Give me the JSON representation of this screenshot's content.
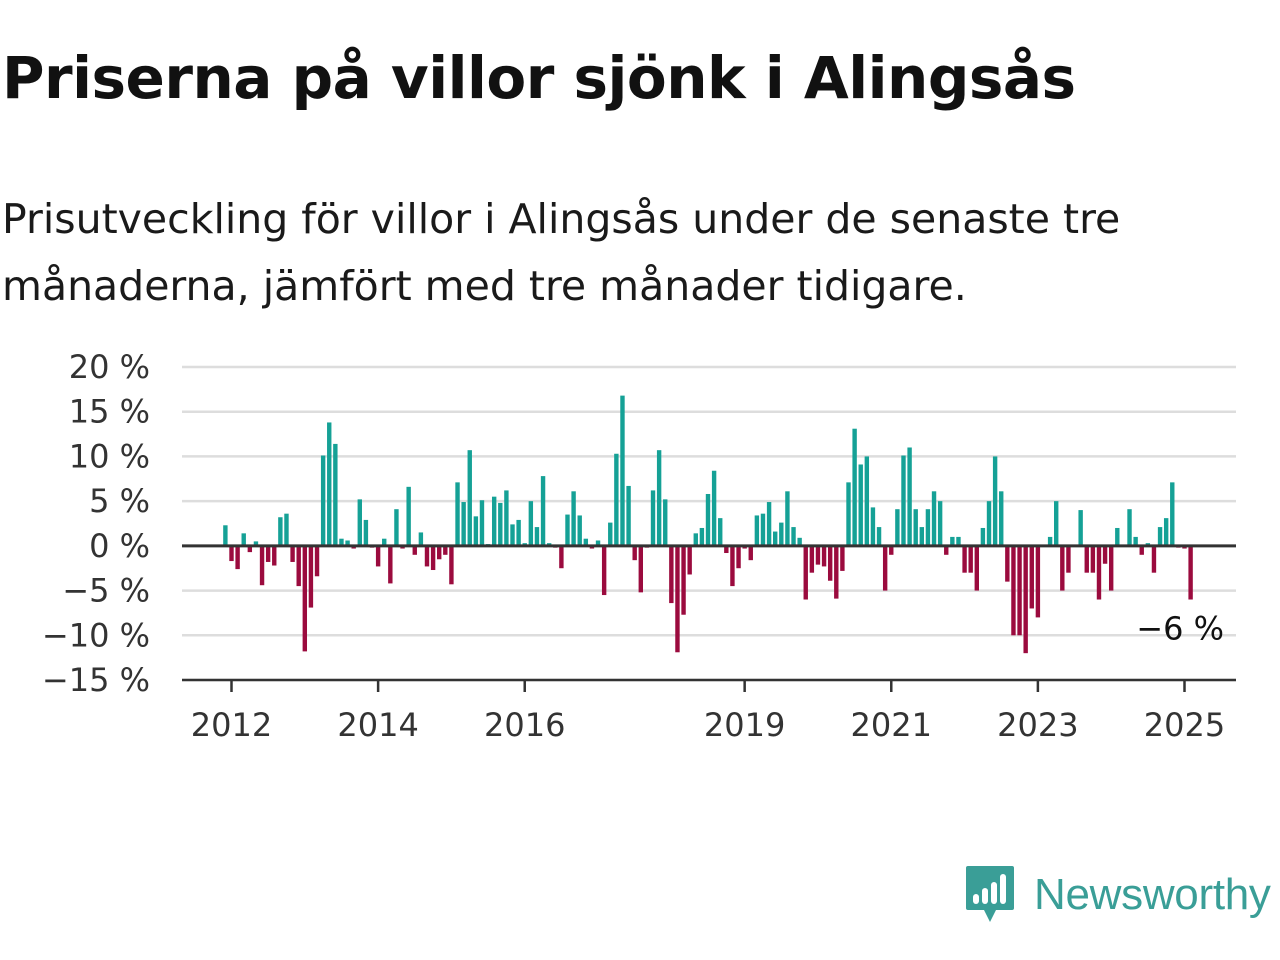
{
  "title": "Priserna på villor sjönk i Alingsås",
  "subtitle": "Prisutveckling för villor i Alingsås under de senaste tre månaderna, jämfört med tre månader tidigare.",
  "brand": {
    "name": "Newsworthy",
    "icon": "newsworthy-logo-icon",
    "color": "#3a9e97"
  },
  "colors": {
    "positive": "#15a196",
    "negative": "#9b0b3e",
    "grid": "#dddddd",
    "zero": "#333333"
  },
  "chart_data": {
    "type": "bar",
    "ylim": [
      -15,
      20
    ],
    "yticks": [
      20,
      15,
      10,
      5,
      0,
      -5,
      -10,
      -15
    ],
    "ytick_labels": [
      "20 %",
      "15 %",
      "10 %",
      "5 %",
      "0 %",
      "−5 %",
      "−10 %",
      "−15 %"
    ],
    "xticks": [
      "2012",
      "2014",
      "2016",
      "2019",
      "2021",
      "2023",
      "2025"
    ],
    "xtick_years": [
      2012,
      2014,
      2016,
      2019,
      2021,
      2023,
      2025
    ],
    "start": "2011-12",
    "end": "2025-01",
    "last_value_label": "−6 %",
    "values": [
      2.3,
      -1.7,
      -2.6,
      1.4,
      -0.7,
      0.5,
      -4.4,
      -1.8,
      -2.2,
      3.2,
      3.6,
      -1.8,
      -4.5,
      -11.8,
      -6.9,
      -3.4,
      10.1,
      13.8,
      11.4,
      0.8,
      0.6,
      -0.3,
      5.2,
      2.9,
      -0.2,
      -2.3,
      0.8,
      -4.2,
      4.1,
      -0.3,
      6.6,
      -1.0,
      1.5,
      -2.3,
      -2.7,
      -1.5,
      -1.0,
      -4.3,
      7.1,
      4.9,
      10.7,
      3.3,
      5.1,
      0.2,
      5.5,
      4.8,
      6.2,
      2.4,
      2.9,
      0.3,
      5.0,
      2.1,
      7.8,
      0.3,
      -0.2,
      -2.5,
      3.5,
      6.1,
      3.4,
      0.8,
      -0.3,
      0.6,
      -5.5,
      2.6,
      10.3,
      16.8,
      6.7,
      -1.6,
      -5.2,
      -0.2,
      6.2,
      10.7,
      5.2,
      -6.4,
      -11.9,
      -7.7,
      -3.2,
      1.4,
      2.0,
      5.8,
      8.4,
      3.1,
      -0.8,
      -4.5,
      -2.5,
      -0.3,
      -1.6,
      3.4,
      3.6,
      4.9,
      1.6,
      2.6,
      6.1,
      2.1,
      0.9,
      -6.0,
      -3.0,
      -2.1,
      -2.3,
      -3.9,
      -5.9,
      -2.8,
      7.1,
      13.1,
      9.1,
      10.0,
      4.3,
      2.1,
      -5.0,
      -1.0,
      4.1,
      10.1,
      11.0,
      4.1,
      2.1,
      4.1,
      6.1,
      5.0,
      -1.0,
      1.0,
      1.0,
      -3.0,
      -3.0,
      -5.0,
      2.0,
      5.0,
      10.0,
      6.1,
      -4.0,
      -10.0,
      -10.0,
      -12.0,
      -7.0,
      -8.0,
      0.1,
      1.0,
      5.0,
      -5.0,
      -3.0,
      0.1,
      4.0,
      -3.0,
      -3.0,
      -6.0,
      -2.0,
      -5.0,
      2.0,
      0.1,
      4.1,
      1.0,
      -1.0,
      0.3,
      -3.0,
      2.1,
      3.1,
      7.1,
      -0.2,
      -0.3,
      -6.0
    ]
  }
}
